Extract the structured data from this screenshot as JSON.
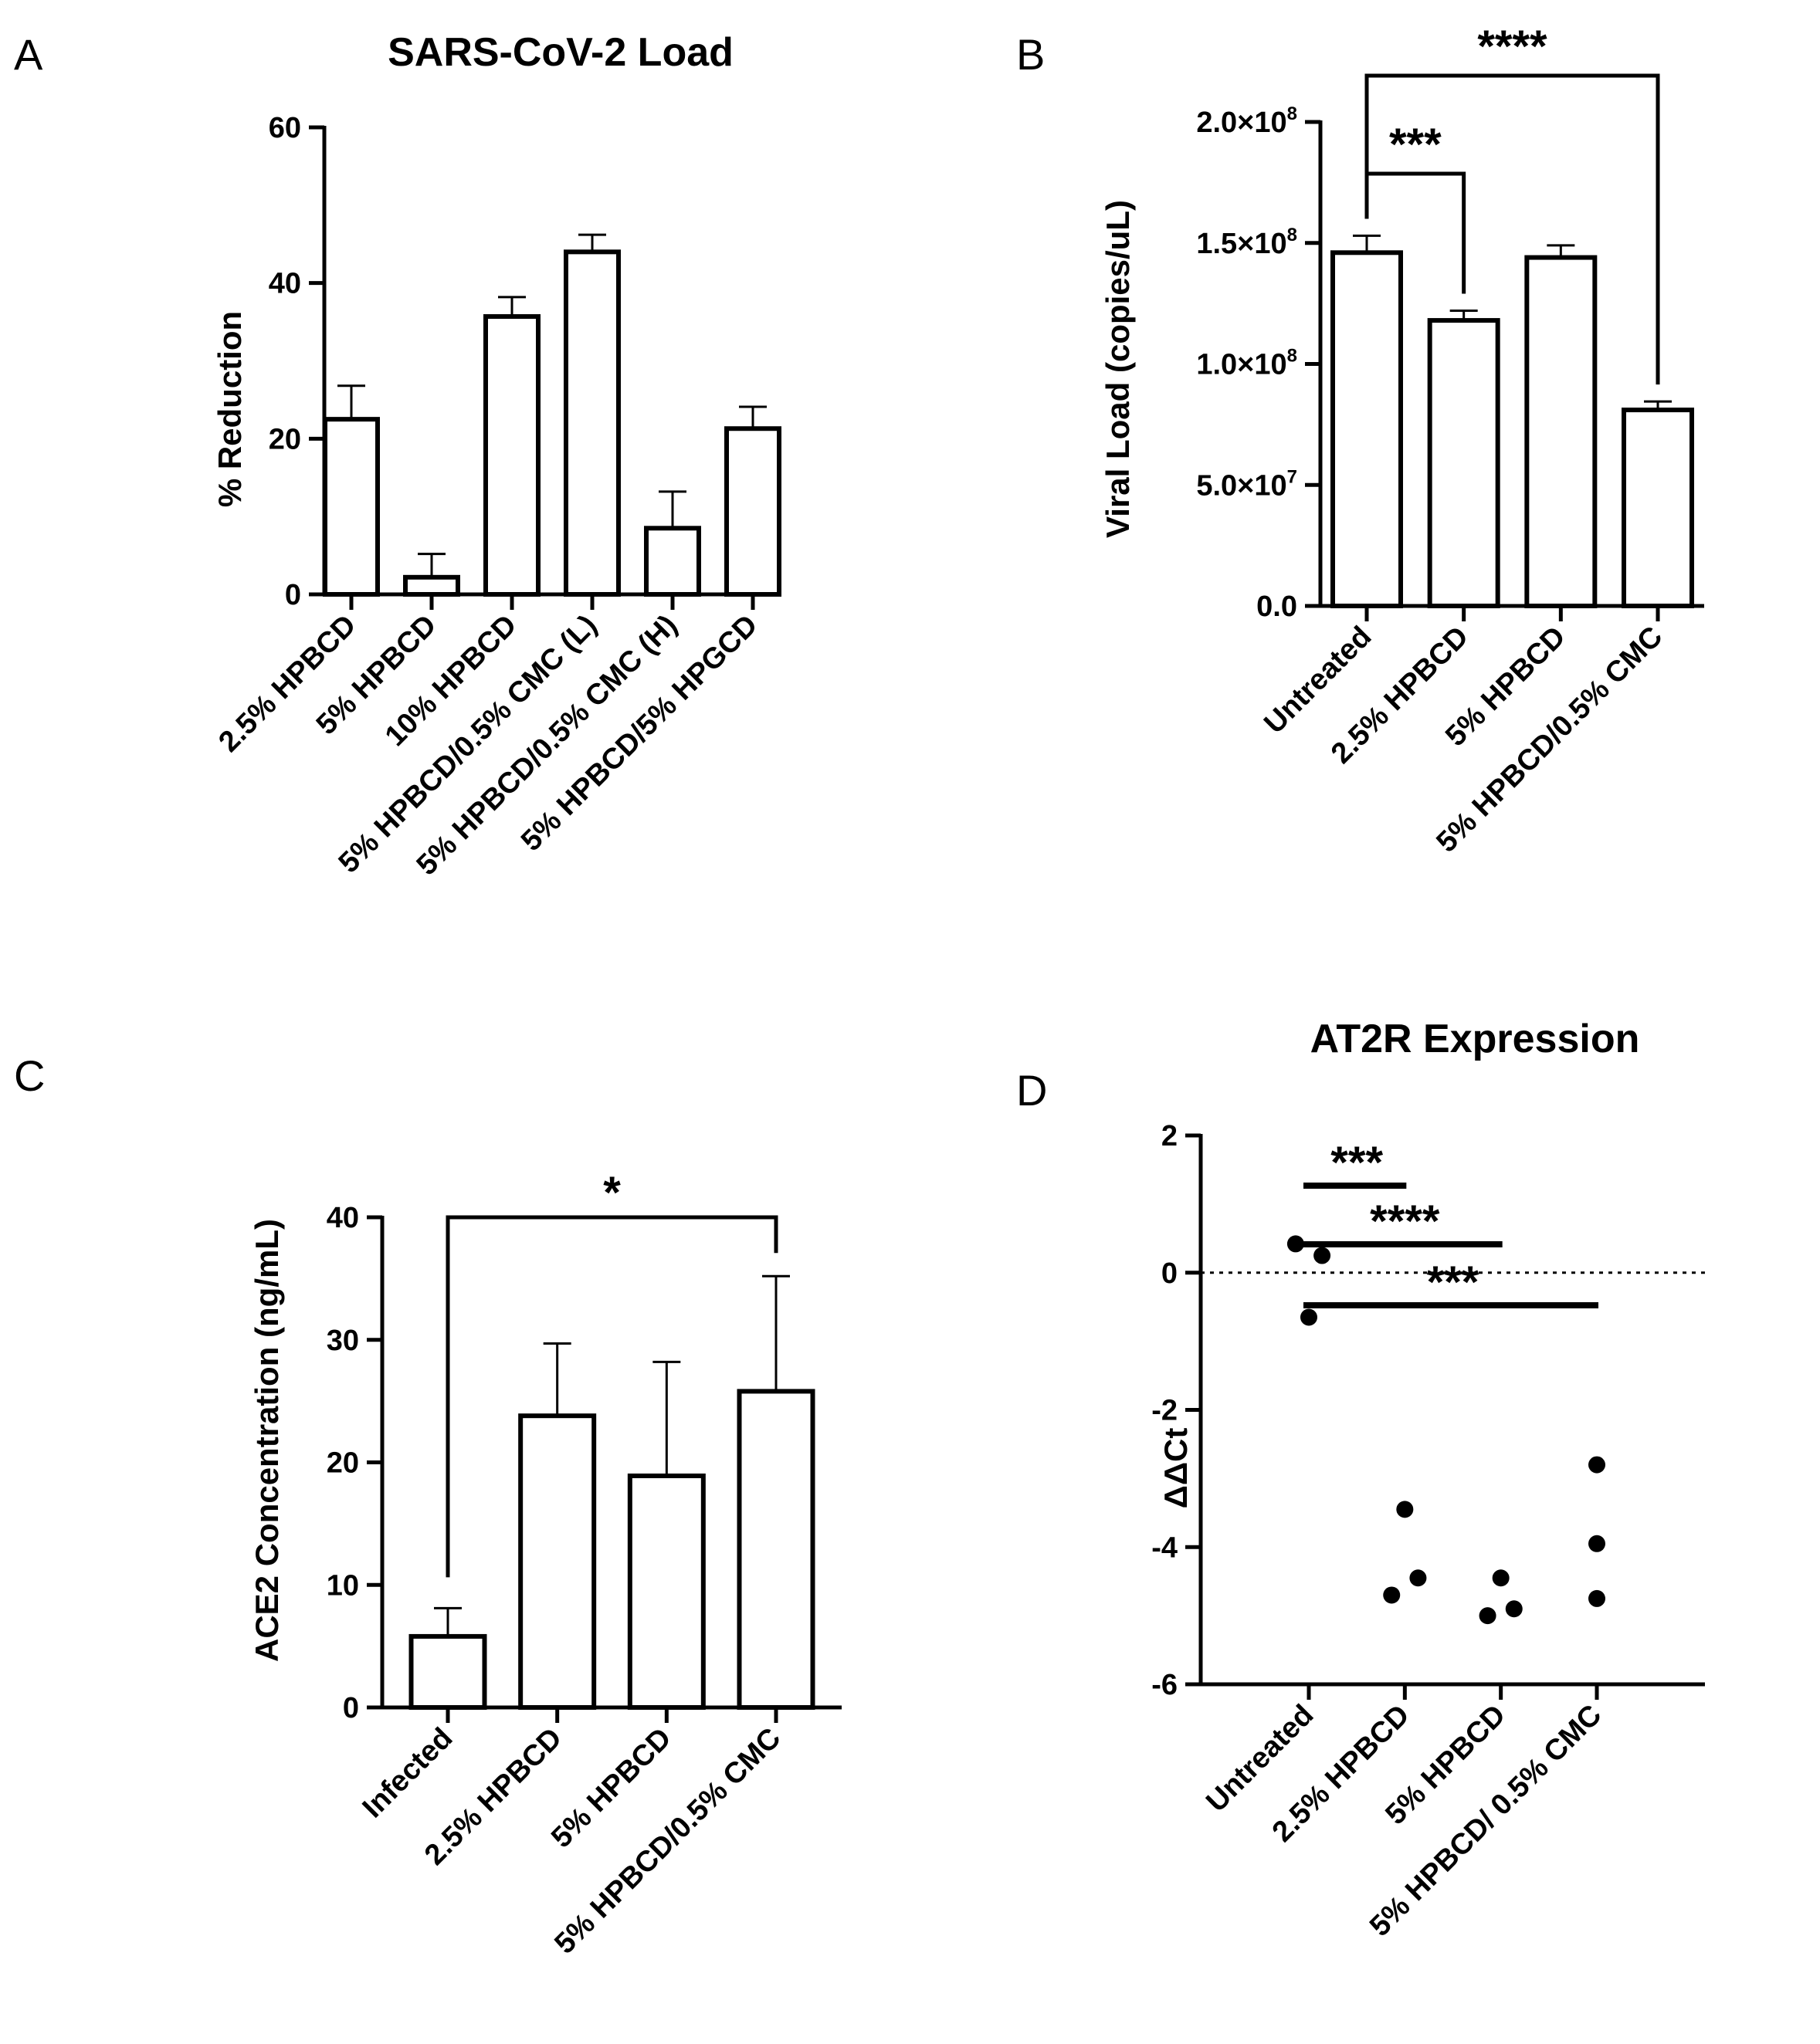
{
  "chart_data": [
    {
      "panel": "A",
      "type": "bar",
      "title": "SARS-CoV-2 Load",
      "xlabel": "",
      "ylabel": "% Reduction",
      "ylim": [
        0,
        60
      ],
      "yticks": [
        "0",
        "20",
        "40",
        "60"
      ],
      "categories": [
        "2.5% HPBCD",
        "5% HPBCD",
        "10% HPBCD",
        "5% HPBCD/0.5% CMC (L)",
        "5% HPBCD/0.5% CMC (H)",
        "5% HPBCD/5% HPGCD"
      ],
      "values": [
        22.5,
        2.2,
        35.7,
        44.0,
        8.5,
        21.3
      ],
      "errors": [
        4.3,
        3.0,
        2.5,
        2.2,
        4.7,
        2.8
      ]
    },
    {
      "panel": "B",
      "type": "bar",
      "title": "",
      "xlabel": "",
      "ylabel": "Viral Load (copies/uL)",
      "ylim": [
        0,
        200000000
      ],
      "yticks": [
        {
          "mant": "0.0",
          "exp": ""
        },
        {
          "mant": "5.0×10",
          "exp": "7"
        },
        {
          "mant": "1.0×10",
          "exp": "8"
        },
        {
          "mant": "1.5×10",
          "exp": "8"
        },
        {
          "mant": "2.0×10",
          "exp": "8"
        }
      ],
      "categories": [
        "Untreated",
        "2.5% HPBCD",
        "5% HPBCD",
        "5% HPBCD/0.5% CMC"
      ],
      "values": [
        146000000,
        118000000,
        144000000,
        81000000
      ],
      "errors": [
        7000000,
        4000000,
        5000000,
        3500000
      ],
      "significance": [
        {
          "from": 0,
          "to": 1,
          "label": "***"
        },
        {
          "from": 0,
          "to": 3,
          "label": "****"
        }
      ]
    },
    {
      "panel": "C",
      "type": "bar",
      "title": "",
      "xlabel": "",
      "ylabel": "ACE2 Concentration (ng/mL)",
      "ylim": [
        0,
        40
      ],
      "yticks": [
        "0",
        "10",
        "20",
        "30",
        "40"
      ],
      "categories": [
        "Infected",
        "2.5% HPBCD",
        "5% HPBCD",
        "5% HPBCD/0.5% CMC"
      ],
      "values": [
        5.8,
        23.8,
        18.9,
        25.8
      ],
      "errors": [
        2.3,
        5.9,
        9.3,
        9.4
      ],
      "significance": [
        {
          "from": 0,
          "to": 3,
          "label": "*"
        }
      ]
    },
    {
      "panel": "D",
      "type": "scatter",
      "title": "AT2R Expression",
      "xlabel": "",
      "ylabel": "ΔΔCt",
      "ylim": [
        -6,
        2
      ],
      "yticks": [
        "-6",
        "-4",
        "-2",
        "0",
        "2"
      ],
      "categories": [
        "Untreated",
        "2.5% HPBCD",
        "5% HPBCD",
        "5% HPBCD/ 0.5% CMC"
      ],
      "points": [
        {
          "group": 0,
          "offset": -0.25,
          "y": 0.42
        },
        {
          "group": 0,
          "offset": 0.0,
          "y": -0.65
        },
        {
          "group": 0,
          "offset": 0.25,
          "y": 0.25
        },
        {
          "group": 1,
          "offset": -0.25,
          "y": -4.7
        },
        {
          "group": 1,
          "offset": 0.0,
          "y": -3.45
        },
        {
          "group": 1,
          "offset": 0.25,
          "y": -4.45
        },
        {
          "group": 2,
          "offset": -0.25,
          "y": -5.0
        },
        {
          "group": 2,
          "offset": 0.0,
          "y": -4.45
        },
        {
          "group": 2,
          "offset": 0.25,
          "y": -4.9
        },
        {
          "group": 3,
          "offset": 0.0,
          "y": -2.8
        },
        {
          "group": 3,
          "offset": 0.0,
          "y": -3.95
        },
        {
          "group": 3,
          "offset": 0.0,
          "y": -4.75
        }
      ],
      "reference_line": 0,
      "significance": [
        {
          "from": 0,
          "to": 1,
          "label": "***"
        },
        {
          "from": 0,
          "to": 2,
          "label": "****"
        },
        {
          "from": 0,
          "to": 3,
          "label": "***"
        }
      ]
    }
  ]
}
